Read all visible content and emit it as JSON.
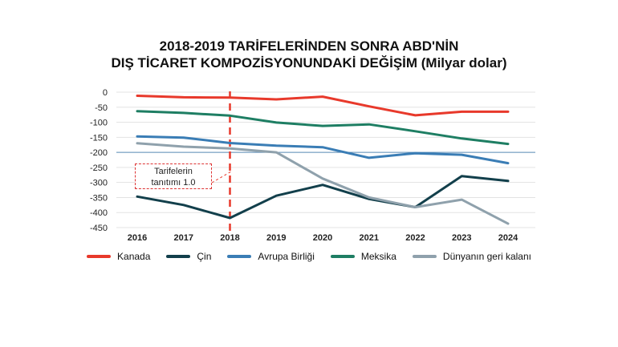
{
  "title": {
    "line1": "2018-2019 TARİFELERİNDEN SONRA ABD'NİN",
    "line2": "DIŞ TİCARET KOMPOZİSYONUNDAKİ DEĞİŞİM (Milyar dolar)"
  },
  "annotation": {
    "line1": "Tarifelerin",
    "line2": "tanıtımı 1.0"
  },
  "chart_data": {
    "type": "line",
    "x": [
      "2016",
      "2017",
      "2018",
      "2019",
      "2020",
      "2021",
      "2022",
      "2023",
      "2024"
    ],
    "ylim": [
      -450,
      0
    ],
    "yticks": [
      "0",
      "-50",
      "-100",
      "-150",
      "-200",
      "-250",
      "-300",
      "-350",
      "-400",
      "-450"
    ],
    "reference_line_y": -200,
    "marker_x": "2018",
    "grid": true,
    "legend_position": "bottom",
    "series": [
      {
        "name": "Kanada",
        "color": "#e8392b",
        "values": [
          -12,
          -17,
          -18,
          -24,
          -15,
          -47,
          -77,
          -65,
          -65
        ]
      },
      {
        "name": "Çin",
        "color": "#123f4b",
        "values": [
          -347,
          -375,
          -418,
          -344,
          -308,
          -355,
          -382,
          -279,
          -295
        ]
      },
      {
        "name": "Avrupa Birliği",
        "color": "#3a7db5",
        "values": [
          -147,
          -151,
          -169,
          -178,
          -183,
          -218,
          -203,
          -208,
          -236
        ]
      },
      {
        "name": "Meksika",
        "color": "#1e7e63",
        "values": [
          -63,
          -69,
          -78,
          -101,
          -112,
          -107,
          -130,
          -154,
          -172
        ]
      },
      {
        "name": "Dünyanın geri kalanı",
        "color": "#8fa1ac",
        "values": [
          -170,
          -181,
          -187,
          -200,
          -287,
          -350,
          -382,
          -357,
          -437
        ]
      }
    ]
  }
}
